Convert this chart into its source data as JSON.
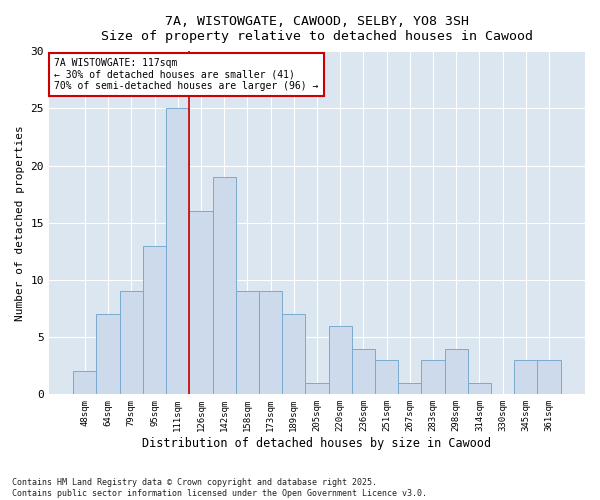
{
  "title_line1": "7A, WISTOWGATE, CAWOOD, SELBY, YO8 3SH",
  "title_line2": "Size of property relative to detached houses in Cawood",
  "xlabel": "Distribution of detached houses by size in Cawood",
  "ylabel": "Number of detached properties",
  "categories": [
    "48sqm",
    "64sqm",
    "79sqm",
    "95sqm",
    "111sqm",
    "126sqm",
    "142sqm",
    "158sqm",
    "173sqm",
    "189sqm",
    "205sqm",
    "220sqm",
    "236sqm",
    "251sqm",
    "267sqm",
    "283sqm",
    "298sqm",
    "314sqm",
    "330sqm",
    "345sqm",
    "361sqm"
  ],
  "values": [
    2,
    7,
    9,
    13,
    25,
    16,
    19,
    9,
    9,
    7,
    1,
    6,
    4,
    3,
    1,
    3,
    4,
    1,
    0,
    3,
    3
  ],
  "bar_color": "#ccdaec",
  "bar_edge_color": "#7aaad0",
  "vline_x_index": 4.5,
  "vline_color": "#cc0000",
  "annotation_text": "7A WISTOWGATE: 117sqm\n← 30% of detached houses are smaller (41)\n70% of semi-detached houses are larger (96) →",
  "annotation_box_facecolor": "#ffffff",
  "annotation_box_edgecolor": "#cc0000",
  "ylim": [
    0,
    30
  ],
  "yticks": [
    0,
    5,
    10,
    15,
    20,
    25,
    30
  ],
  "plot_bg_color": "#dce6f0",
  "fig_bg_color": "#ffffff",
  "grid_color": "#ffffff",
  "footnote": "Contains HM Land Registry data © Crown copyright and database right 2025.\nContains public sector information licensed under the Open Government Licence v3.0."
}
